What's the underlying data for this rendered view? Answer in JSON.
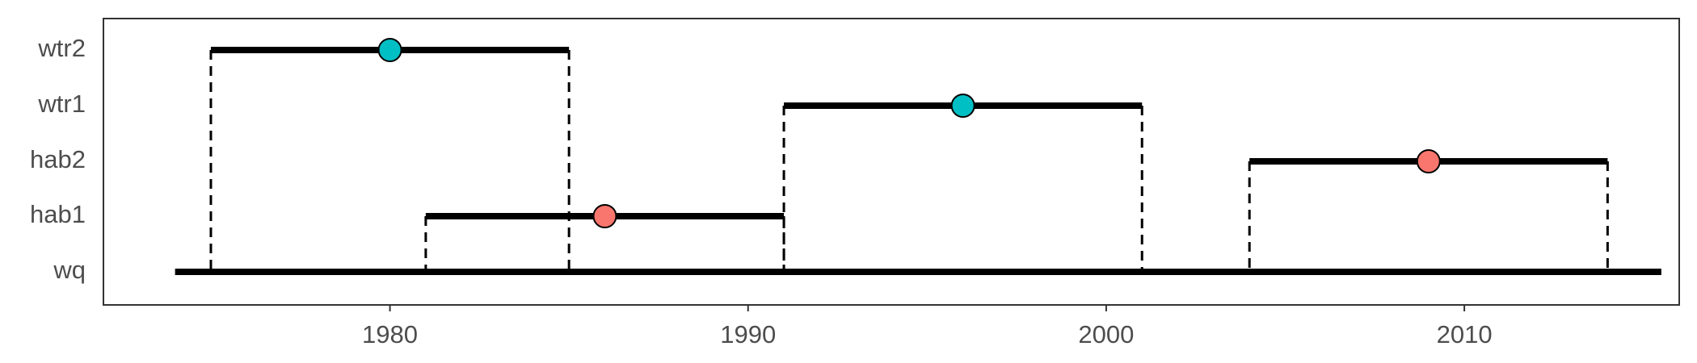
{
  "chart_data": {
    "type": "timeline",
    "title": "",
    "xlabel": "",
    "ylabel": "",
    "xlim": [
      1972,
      2016
    ],
    "x_ticks": [
      1980,
      1990,
      2000,
      2010
    ],
    "x_tick_labels": [
      "1980",
      "1990",
      "2000",
      "2010"
    ],
    "categories": [
      "wq",
      "hab1",
      "hab2",
      "wtr1",
      "wtr2"
    ],
    "base": {
      "name": "wq",
      "x_start": 1974,
      "x_end": 2015.5
    },
    "segments": [
      {
        "name": "hab1",
        "x_start": 1981,
        "x_end": 1991,
        "midpoint": 1986,
        "point_color": "#F8766D"
      },
      {
        "name": "hab2",
        "x_start": 2004,
        "x_end": 2014,
        "midpoint": 2009,
        "point_color": "#F8766D"
      },
      {
        "name": "wtr1",
        "x_start": 1991,
        "x_end": 2001,
        "midpoint": 1996,
        "point_color": "#00BFC4"
      },
      {
        "name": "wtr2",
        "x_start": 1975,
        "x_end": 1985,
        "midpoint": 1980,
        "point_color": "#00BFC4"
      }
    ],
    "grid": false,
    "legend": "none",
    "colors": {
      "line": "#000000",
      "axis_text": "#4d4d4d",
      "panel_border": "#333333"
    }
  }
}
